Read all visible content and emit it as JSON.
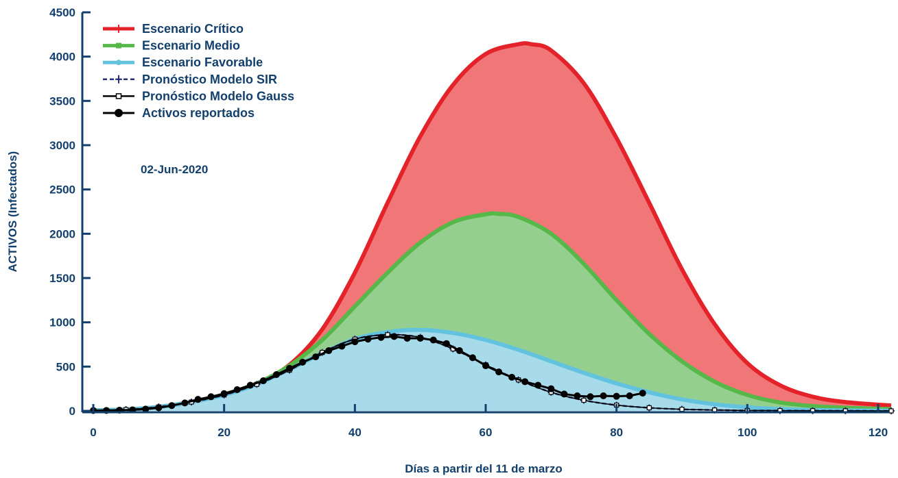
{
  "chart_data": {
    "type": "area",
    "xlabel": "Días a partir del 11 de marzo",
    "ylabel": "ACTIVOS (Infectados)",
    "xlim": [
      0,
      122
    ],
    "ylim": [
      0,
      4500
    ],
    "xticks": [
      0,
      20,
      40,
      60,
      80,
      100,
      120
    ],
    "yticks": [
      0,
      500,
      1000,
      1500,
      2000,
      2500,
      3000,
      3500,
      4000,
      4500
    ],
    "annotation": "02-Jun-2020",
    "legend_position": "top-left",
    "colors": {
      "axis": "#123f6b",
      "critico_line": "#e32229",
      "critico_fill": "#f07677",
      "medio_line": "#55b848",
      "medio_fill": "#94cf8f",
      "favorable_line": "#63c3df",
      "favorable_fill": "#a8dbe9",
      "sir": "#2a2f7a",
      "gauss": "#000000",
      "reportados": "#000000"
    },
    "series": [
      {
        "name": "Escenario Crítico",
        "kind": "filled-line",
        "x": [
          0,
          5,
          10,
          15,
          20,
          25,
          30,
          35,
          40,
          45,
          50,
          55,
          60,
          65,
          67,
          70,
          75,
          80,
          85,
          90,
          95,
          100,
          105,
          110,
          115,
          122
        ],
        "y": [
          5,
          15,
          45,
          100,
          185,
          310,
          520,
          920,
          1560,
          2350,
          3100,
          3680,
          4030,
          4140,
          4140,
          4070,
          3700,
          3080,
          2350,
          1600,
          980,
          540,
          290,
          160,
          100,
          60
        ]
      },
      {
        "name": "Escenario Medio",
        "kind": "filled-line",
        "x": [
          0,
          5,
          10,
          15,
          20,
          25,
          30,
          35,
          40,
          45,
          50,
          55,
          60,
          62,
          65,
          70,
          75,
          80,
          85,
          90,
          95,
          100,
          105,
          110,
          115,
          122
        ],
        "y": [
          5,
          15,
          45,
          100,
          185,
          310,
          510,
          800,
          1180,
          1560,
          1900,
          2130,
          2220,
          2225,
          2190,
          2000,
          1660,
          1250,
          870,
          560,
          330,
          180,
          95,
          55,
          35,
          20
        ]
      },
      {
        "name": "Escenario Favorable",
        "kind": "filled-line",
        "x": [
          0,
          5,
          10,
          15,
          20,
          25,
          30,
          35,
          40,
          45,
          50,
          55,
          60,
          65,
          70,
          75,
          80,
          85,
          90,
          95,
          100,
          105,
          110,
          115,
          122
        ],
        "y": [
          5,
          15,
          45,
          100,
          180,
          300,
          470,
          650,
          810,
          890,
          915,
          880,
          800,
          690,
          560,
          430,
          310,
          210,
          130,
          75,
          40,
          20,
          10,
          5,
          2
        ]
      },
      {
        "name": "Pronóstico Modelo SIR",
        "kind": "dashed-plus",
        "x": [
          0,
          5,
          10,
          15,
          20,
          25,
          30,
          35,
          40,
          45,
          50,
          55,
          60,
          65,
          70,
          75,
          80,
          85,
          90,
          95,
          100,
          105,
          110,
          115,
          122
        ],
        "y": [
          5,
          15,
          45,
          100,
          180,
          300,
          460,
          660,
          810,
          860,
          830,
          700,
          520,
          350,
          210,
          120,
          65,
          35,
          18,
          10,
          5,
          3,
          2,
          1,
          0
        ]
      },
      {
        "name": "Pronóstico Modelo Gauss",
        "kind": "line-square",
        "x": [
          0,
          5,
          10,
          15,
          20,
          25,
          30,
          35,
          40,
          45,
          50,
          55,
          60,
          65,
          70,
          75,
          80,
          85,
          90,
          95,
          100,
          105,
          110,
          115,
          122
        ],
        "y": [
          5,
          15,
          45,
          100,
          180,
          300,
          460,
          660,
          810,
          860,
          830,
          700,
          520,
          350,
          210,
          120,
          65,
          35,
          18,
          10,
          5,
          3,
          2,
          1,
          0
        ]
      },
      {
        "name": "Activos reportados",
        "kind": "line-dot",
        "x": [
          0,
          2,
          4,
          6,
          8,
          10,
          12,
          14,
          16,
          18,
          20,
          22,
          24,
          26,
          28,
          30,
          32,
          34,
          36,
          38,
          40,
          42,
          44,
          46,
          48,
          50,
          52,
          54,
          56,
          58,
          60,
          62,
          64,
          66,
          68,
          70,
          72,
          74,
          76,
          78,
          80,
          82,
          84
        ],
        "y": [
          5,
          5,
          8,
          12,
          20,
          35,
          60,
          90,
          130,
          160,
          195,
          240,
          290,
          340,
          410,
          480,
          550,
          610,
          680,
          730,
          780,
          810,
          830,
          840,
          820,
          820,
          800,
          760,
          680,
          600,
          510,
          440,
          380,
          330,
          290,
          250,
          190,
          170,
          160,
          170,
          165,
          170,
          200
        ]
      }
    ]
  }
}
